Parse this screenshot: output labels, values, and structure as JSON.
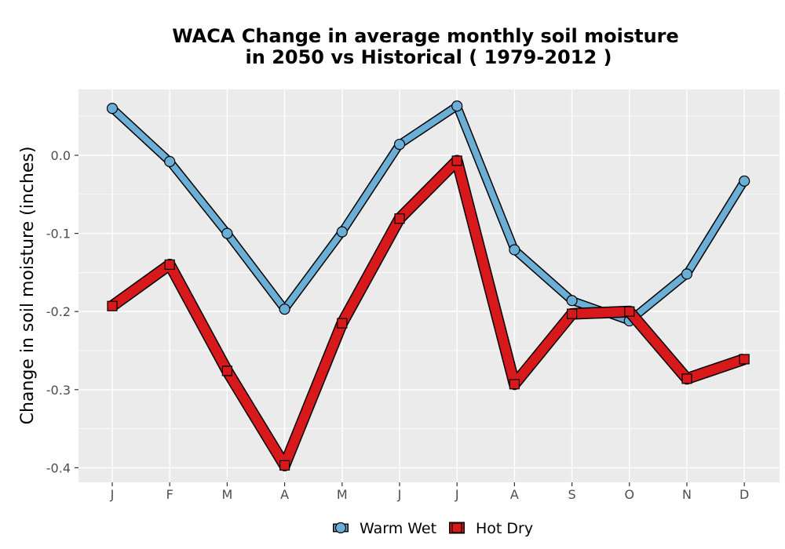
{
  "chart_data": {
    "type": "line",
    "title_line1": "WACA  Change in average monthly soil moisture",
    "title_line2": "in 2050 vs Historical ( 1979-2012 )",
    "xlabel": "",
    "ylabel": "Change in soil moisture (inches)",
    "categories": [
      "J",
      "F",
      "M",
      "A",
      "M",
      "J",
      "J",
      "A",
      "S",
      "O",
      "N",
      "D"
    ],
    "ylim": [
      -0.42,
      0.085
    ],
    "yticks": [
      0.0,
      -0.1,
      -0.2,
      -0.3,
      -0.4
    ],
    "ytick_labels": [
      "0.0",
      "-0.1",
      "-0.2",
      "-0.3",
      "-0.4"
    ],
    "grid": true,
    "legend_position": "bottom",
    "series": [
      {
        "name": "Warm Wet",
        "color": "#6baed6",
        "marker": "circle",
        "values": [
          0.06,
          -0.008,
          -0.1,
          -0.197,
          -0.098,
          0.014,
          0.063,
          -0.121,
          -0.186,
          -0.212,
          -0.152,
          -0.033
        ]
      },
      {
        "name": "Hot Dry",
        "color": "#d7191c",
        "marker": "square",
        "values": [
          -0.193,
          -0.14,
          -0.276,
          -0.397,
          -0.215,
          -0.081,
          -0.007,
          -0.293,
          -0.203,
          -0.2,
          -0.286,
          -0.261
        ]
      }
    ]
  }
}
